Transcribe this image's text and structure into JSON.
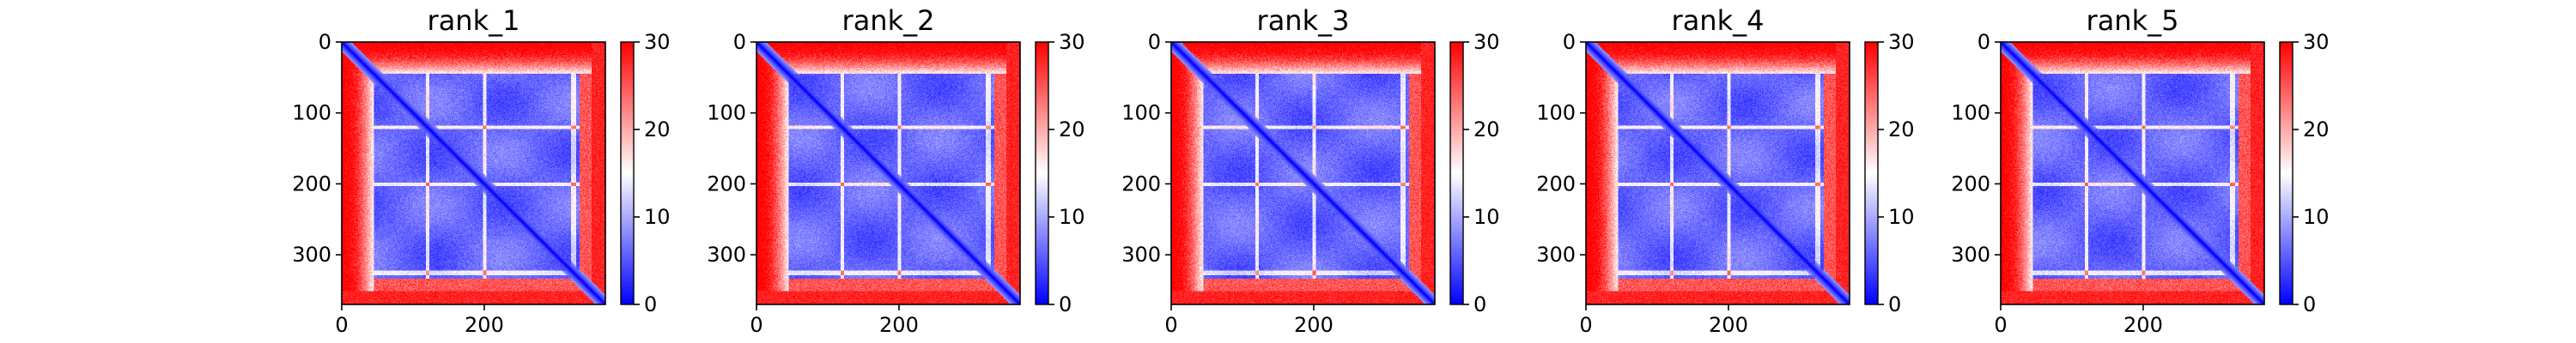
{
  "chart_data": [
    {
      "type": "heatmap",
      "title": "rank_1",
      "x_ticks": [
        0,
        200
      ],
      "y_ticks": [
        0,
        100,
        200,
        300
      ],
      "xlim": [
        0,
        370
      ],
      "ylim": [
        370,
        0
      ],
      "colorbar": {
        "ticks": [
          0,
          10,
          20,
          30
        ],
        "range": [
          0,
          30
        ],
        "colormap": "bwr"
      },
      "features": {
        "bright_rows": [
          120,
          200
        ],
        "lower_band_row": 325,
        "border_width": 45
      }
    },
    {
      "type": "heatmap",
      "title": "rank_2",
      "x_ticks": [
        0,
        200
      ],
      "y_ticks": [
        0,
        100,
        200,
        300
      ],
      "xlim": [
        0,
        370
      ],
      "ylim": [
        370,
        0
      ],
      "colorbar": {
        "ticks": [
          0,
          10,
          20,
          30
        ],
        "range": [
          0,
          30
        ],
        "colormap": "bwr"
      },
      "features": {
        "bright_rows": [
          120,
          200
        ],
        "lower_band_row": 325,
        "border_width": 45
      }
    },
    {
      "type": "heatmap",
      "title": "rank_3",
      "x_ticks": [
        0,
        200
      ],
      "y_ticks": [
        0,
        100,
        200,
        300
      ],
      "xlim": [
        0,
        370
      ],
      "ylim": [
        370,
        0
      ],
      "colorbar": {
        "ticks": [
          0,
          10,
          20,
          30
        ],
        "range": [
          0,
          30
        ],
        "colormap": "bwr"
      },
      "features": {
        "bright_rows": [
          120,
          200
        ],
        "lower_band_row": 325,
        "border_width": 45
      }
    },
    {
      "type": "heatmap",
      "title": "rank_4",
      "x_ticks": [
        0,
        200
      ],
      "y_ticks": [
        0,
        100,
        200,
        300
      ],
      "xlim": [
        0,
        370
      ],
      "ylim": [
        370,
        0
      ],
      "colorbar": {
        "ticks": [
          0,
          10,
          20,
          30
        ],
        "range": [
          0,
          30
        ],
        "colormap": "bwr"
      },
      "features": {
        "bright_rows": [
          120,
          200
        ],
        "lower_band_row": 325,
        "border_width": 45
      }
    },
    {
      "type": "heatmap",
      "title": "rank_5",
      "x_ticks": [
        0,
        200
      ],
      "y_ticks": [
        0,
        100,
        200,
        300
      ],
      "xlim": [
        0,
        370
      ],
      "ylim": [
        370,
        0
      ],
      "colorbar": {
        "ticks": [
          0,
          10,
          20,
          30
        ],
        "range": [
          0,
          30
        ],
        "colormap": "bwr"
      },
      "features": {
        "bright_rows": [
          120,
          200
        ],
        "lower_band_row": 325,
        "border_width": 45
      }
    }
  ],
  "colors": {
    "low": "#0000ff",
    "mid": "#ffffff",
    "high": "#ff0000"
  }
}
